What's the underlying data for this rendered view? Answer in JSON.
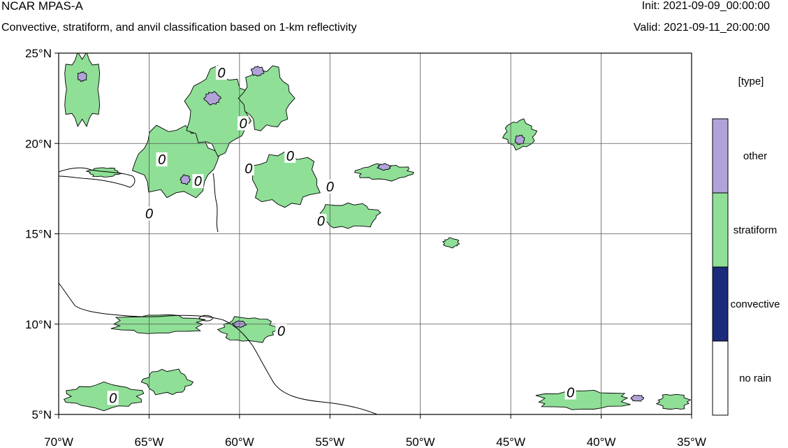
{
  "header": {
    "title": "NCAR MPAS-A",
    "subtitle": "Convective, stratiform, and anvil classification based on 1-km reflectivity",
    "init": "Init: 2021-09-09_00:00:00",
    "valid": "Valid: 2021-09-11_20:00:00"
  },
  "map": {
    "lon_range": [
      -70,
      -35
    ],
    "lat_range": [
      5,
      25
    ],
    "lon_ticks": [
      {
        "value": -70,
        "label": "70°W"
      },
      {
        "value": -65,
        "label": "65°W"
      },
      {
        "value": -60,
        "label": "60°W"
      },
      {
        "value": -55,
        "label": "55°W"
      },
      {
        "value": -50,
        "label": "50°W"
      },
      {
        "value": -45,
        "label": "45°W"
      },
      {
        "value": -40,
        "label": "40°W"
      },
      {
        "value": -35,
        "label": "35°W"
      }
    ],
    "lat_ticks": [
      {
        "value": 25,
        "label": "25°N"
      },
      {
        "value": 20,
        "label": "20°N"
      },
      {
        "value": 15,
        "label": "15°N"
      },
      {
        "value": 10,
        "label": "10°N"
      },
      {
        "value": 5,
        "label": "5°N"
      }
    ],
    "grid": true,
    "contour_label": "0",
    "contour_label_positions": [
      {
        "lon": -61.0,
        "lat": 23.8
      },
      {
        "lon": -59.8,
        "lat": 21.0
      },
      {
        "lon": -64.3,
        "lat": 19.0
      },
      {
        "lon": -62.3,
        "lat": 17.8
      },
      {
        "lon": -59.5,
        "lat": 18.5
      },
      {
        "lon": -57.2,
        "lat": 19.2
      },
      {
        "lon": -55.0,
        "lat": 17.5
      },
      {
        "lon": -65.0,
        "lat": 16.0
      },
      {
        "lon": -55.5,
        "lat": 15.6
      },
      {
        "lon": -57.7,
        "lat": 9.5
      },
      {
        "lon": -67.0,
        "lat": 5.8
      },
      {
        "lon": -41.7,
        "lat": 6.1
      }
    ],
    "regions": [
      {
        "type": "stratiform",
        "lon": -68.7,
        "lat": 23.0,
        "rx": 1.2,
        "ry": 2.3
      },
      {
        "type": "stratiform",
        "lon": -63.5,
        "lat": 19.0,
        "rx": 2.6,
        "ry": 2.3
      },
      {
        "type": "stratiform",
        "lon": -61.2,
        "lat": 21.8,
        "rx": 2.0,
        "ry": 2.6
      },
      {
        "type": "stratiform",
        "lon": -58.5,
        "lat": 22.5,
        "rx": 1.6,
        "ry": 2.0
      },
      {
        "type": "stratiform",
        "lon": -57.5,
        "lat": 18.0,
        "rx": 2.2,
        "ry": 1.7
      },
      {
        "type": "stratiform",
        "lon": -54.0,
        "lat": 16.0,
        "rx": 2.0,
        "ry": 0.8
      },
      {
        "type": "stratiform",
        "lon": -52.0,
        "lat": 18.4,
        "rx": 1.8,
        "ry": 0.5
      },
      {
        "type": "stratiform",
        "lon": -44.5,
        "lat": 20.5,
        "rx": 1.0,
        "ry": 0.9
      },
      {
        "type": "stratiform",
        "lon": -67.5,
        "lat": 18.4,
        "rx": 1.0,
        "ry": 0.3
      },
      {
        "type": "stratiform",
        "lon": -64.5,
        "lat": 10.0,
        "rx": 3.0,
        "ry": 0.6
      },
      {
        "type": "stratiform",
        "lon": -59.5,
        "lat": 9.7,
        "rx": 1.8,
        "ry": 0.8
      },
      {
        "type": "stratiform",
        "lon": -67.5,
        "lat": 6.0,
        "rx": 2.5,
        "ry": 0.8
      },
      {
        "type": "stratiform",
        "lon": -64.0,
        "lat": 6.8,
        "rx": 1.5,
        "ry": 0.8
      },
      {
        "type": "stratiform",
        "lon": -41.0,
        "lat": 5.8,
        "rx": 3.0,
        "ry": 0.6
      },
      {
        "type": "stratiform",
        "lon": -36.0,
        "lat": 5.7,
        "rx": 1.0,
        "ry": 0.5
      },
      {
        "type": "stratiform",
        "lon": -48.3,
        "lat": 14.5,
        "rx": 0.5,
        "ry": 0.3
      },
      {
        "type": "other",
        "lon": -61.5,
        "lat": 22.5,
        "rx": 0.5,
        "ry": 0.4
      },
      {
        "type": "other",
        "lon": -59.0,
        "lat": 24.0,
        "rx": 0.4,
        "ry": 0.3
      },
      {
        "type": "other",
        "lon": -44.5,
        "lat": 20.2,
        "rx": 0.3,
        "ry": 0.3
      },
      {
        "type": "other",
        "lon": -63.0,
        "lat": 18.0,
        "rx": 0.3,
        "ry": 0.3
      },
      {
        "type": "other",
        "lon": -52.0,
        "lat": 18.7,
        "rx": 0.4,
        "ry": 0.2
      },
      {
        "type": "other",
        "lon": -60.0,
        "lat": 10.0,
        "rx": 0.4,
        "ry": 0.2
      },
      {
        "type": "other",
        "lon": -68.7,
        "lat": 23.7,
        "rx": 0.3,
        "ry": 0.3
      },
      {
        "type": "other",
        "lon": -38.0,
        "lat": 5.9,
        "rx": 0.4,
        "ry": 0.2
      }
    ]
  },
  "legend": {
    "title": "[type]",
    "items": [
      {
        "label": "other",
        "color": "#b1a3da"
      },
      {
        "label": "stratiform",
        "color": "#8fdf97"
      },
      {
        "label": "convective",
        "color": "#1b2a7a"
      },
      {
        "label": "no rain",
        "color": "#ffffff"
      }
    ]
  },
  "colors": {
    "land_outline": "#000000",
    "grid": "#555555"
  }
}
